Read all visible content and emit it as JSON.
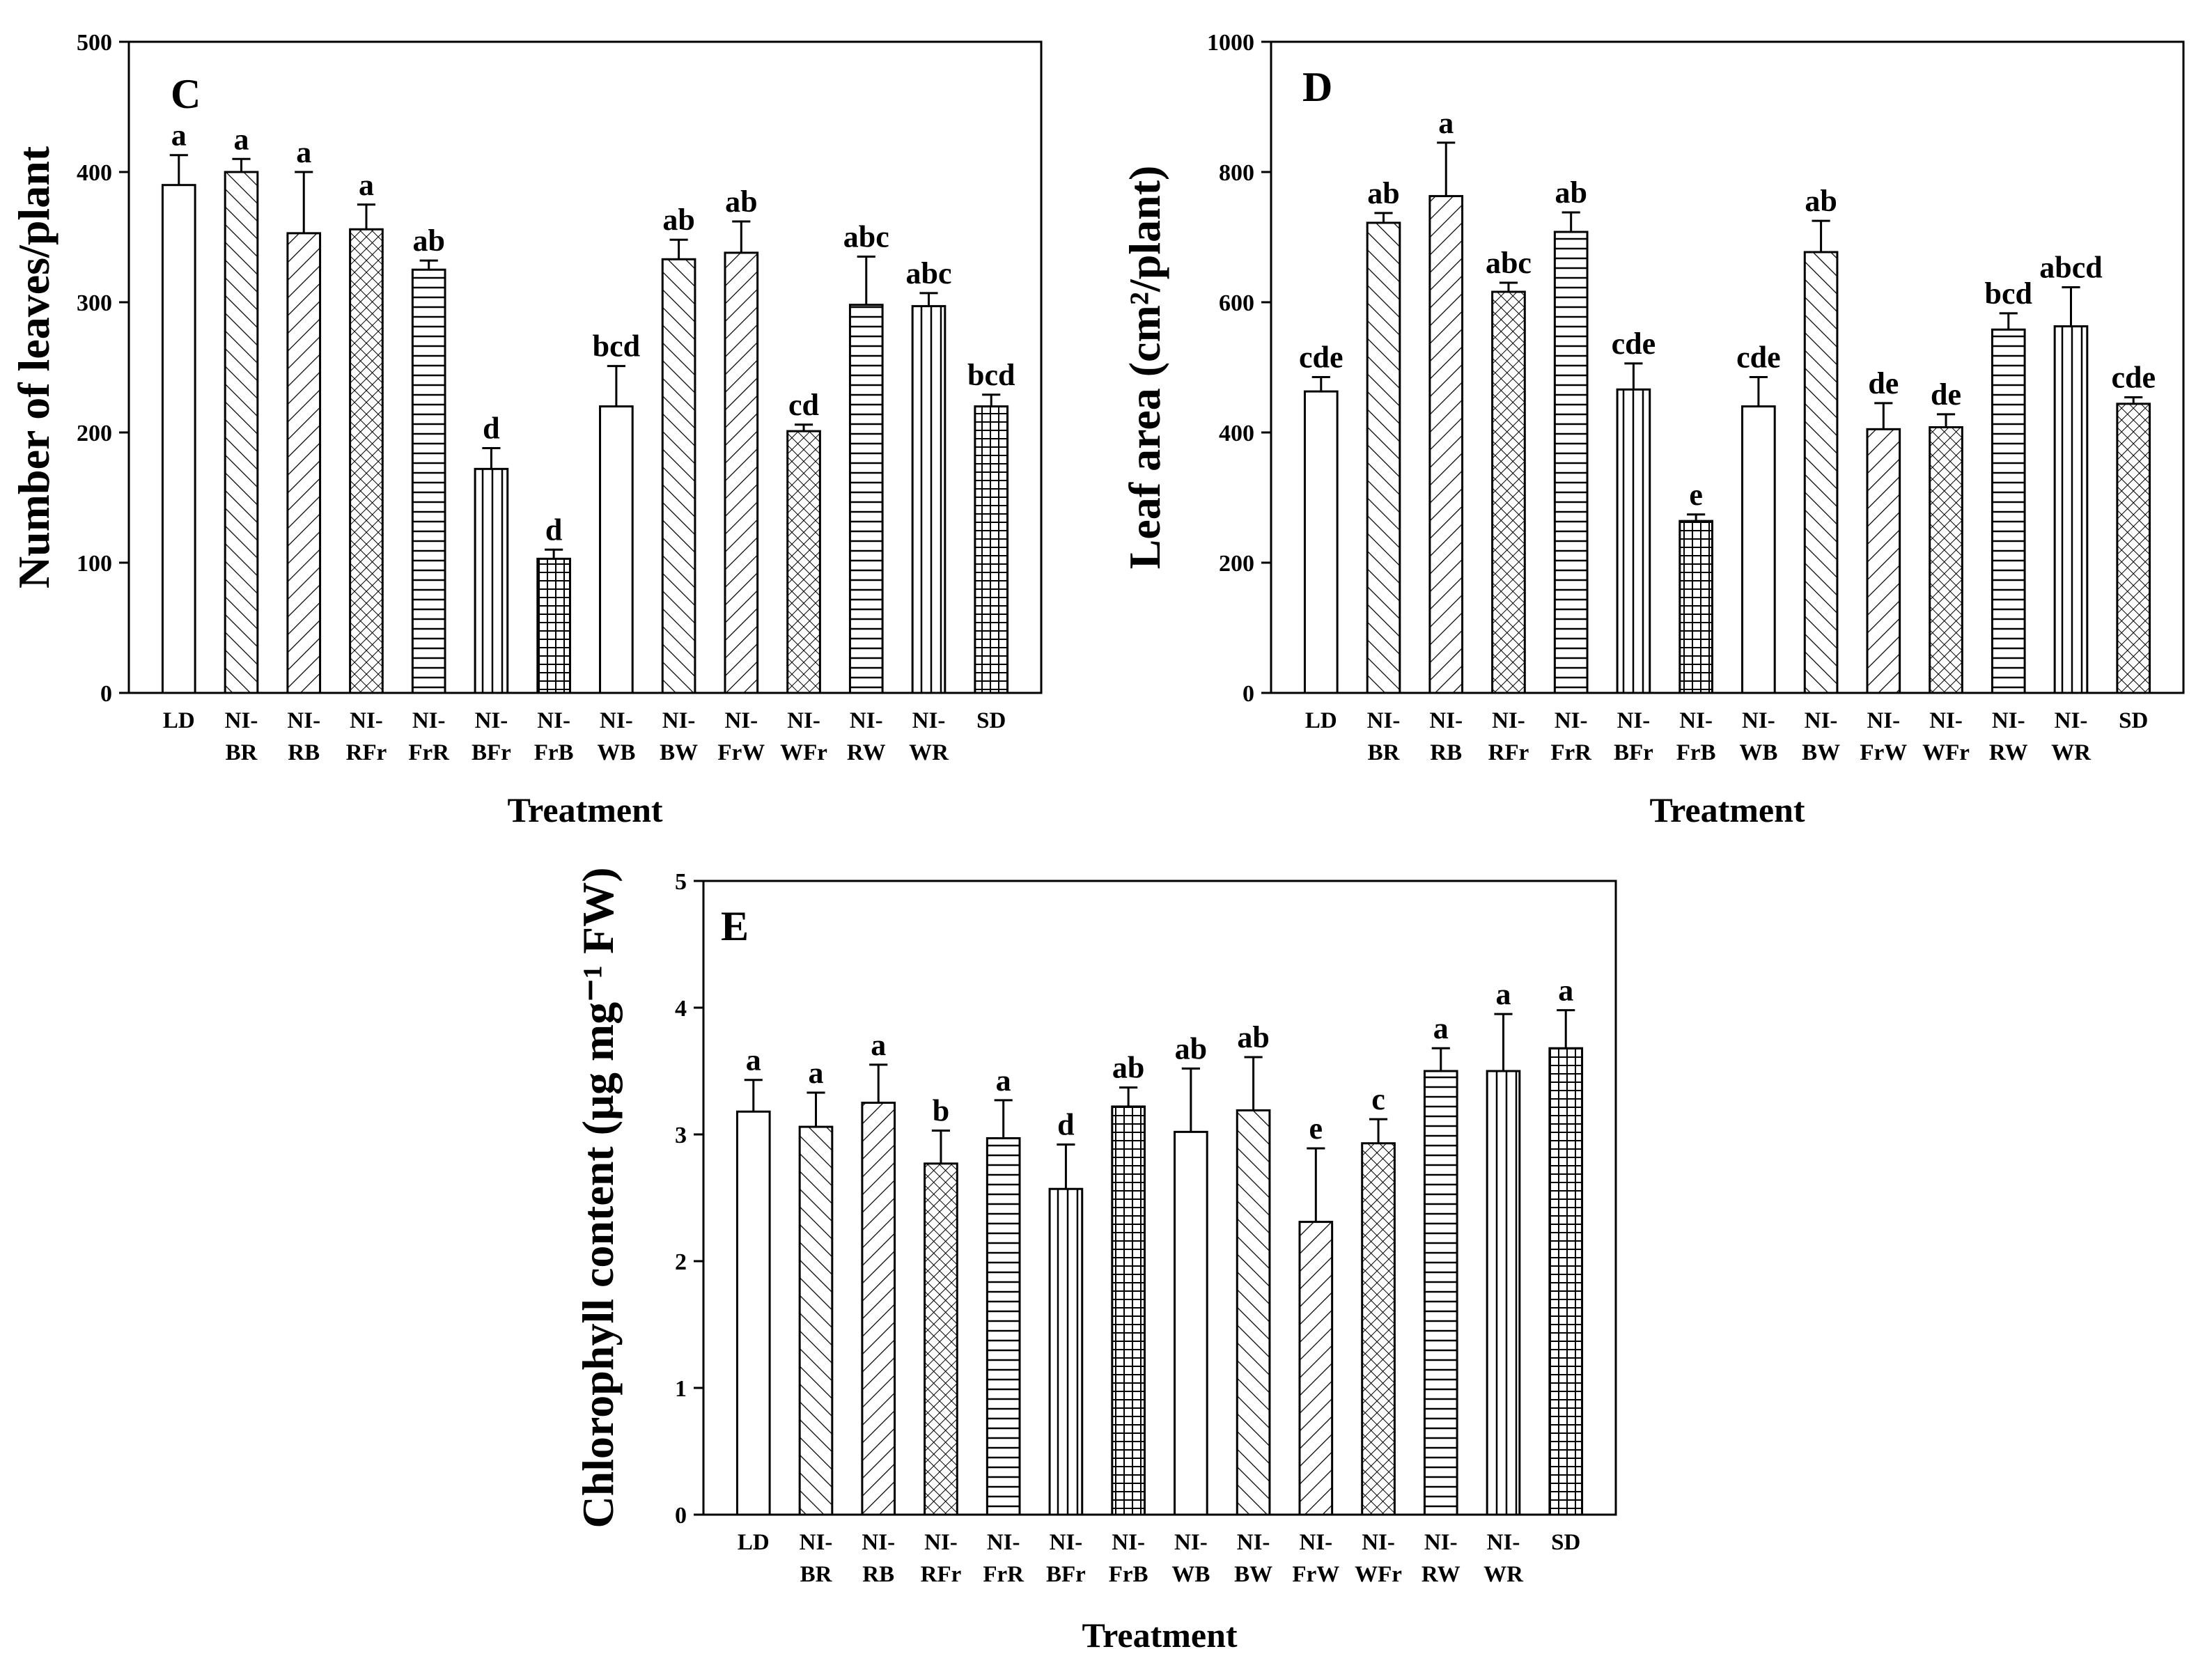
{
  "figure": {
    "xlabel": "Treatment"
  },
  "chart_data": [
    {
      "panel": "C",
      "type": "bar",
      "title": "C",
      "ylabel": "Number of leaves/plant",
      "xlabel": "Treatment",
      "ylim": [
        0,
        500
      ],
      "yticks": [
        0,
        100,
        200,
        300,
        400,
        500
      ],
      "categories": [
        [
          "LD"
        ],
        [
          "NI-",
          "BR"
        ],
        [
          "NI-",
          "RB"
        ],
        [
          "NI-",
          "RFr"
        ],
        [
          "NI-",
          "FrR"
        ],
        [
          "NI-",
          "BFr"
        ],
        [
          "NI-",
          "FrB"
        ],
        [
          "NI-",
          "WB"
        ],
        [
          "NI-",
          "BW"
        ],
        [
          "NI-",
          "FrW"
        ],
        [
          "NI-",
          "WFr"
        ],
        [
          "NI-",
          "RW"
        ],
        [
          "NI-",
          "WR"
        ],
        [
          "SD"
        ]
      ],
      "values": [
        390,
        400,
        353,
        356,
        325,
        172,
        103,
        220,
        333,
        338,
        201,
        298,
        297,
        220
      ],
      "errors": [
        23,
        10,
        47,
        19,
        7,
        16,
        7,
        31,
        15,
        24,
        5,
        37,
        10,
        9
      ],
      "letters": [
        "a",
        "a",
        "a",
        "a",
        "ab",
        "d",
        "d",
        "bcd",
        "ab",
        "ab",
        "cd",
        "abc",
        "abc",
        "bcd"
      ]
    },
    {
      "panel": "D",
      "type": "bar",
      "title": "D",
      "ylabel": "Leaf area (cm²/plant)",
      "xlabel": "Treatment",
      "ylim": [
        0,
        1000
      ],
      "yticks": [
        0,
        200,
        400,
        600,
        800,
        1000
      ],
      "categories": [
        [
          "LD"
        ],
        [
          "NI-",
          "BR"
        ],
        [
          "NI-",
          "RB"
        ],
        [
          "NI-",
          "RFr"
        ],
        [
          "NI-",
          "FrR"
        ],
        [
          "NI-",
          "BFr"
        ],
        [
          "NI-",
          "FrB"
        ],
        [
          "NI-",
          "WB"
        ],
        [
          "NI-",
          "BW"
        ],
        [
          "NI-",
          "FrW"
        ],
        [
          "NI-",
          "WFr"
        ],
        [
          "NI-",
          "RW"
        ],
        [
          "NI-",
          "WR"
        ],
        [
          "SD"
        ]
      ],
      "values": [
        463,
        722,
        763,
        616,
        708,
        466,
        264,
        440,
        677,
        405,
        408,
        558,
        563,
        444
      ],
      "errors": [
        22,
        15,
        82,
        14,
        30,
        40,
        10,
        45,
        48,
        40,
        20,
        25,
        60,
        10
      ],
      "letters": [
        "cde",
        "ab",
        "a",
        "abc",
        "ab",
        "cde",
        "e",
        "cde",
        "ab",
        "de",
        "de",
        "bcd",
        "abcd",
        "cde"
      ]
    },
    {
      "panel": "E",
      "type": "bar",
      "title": "E",
      "ylabel": "Chlorophyll content (µg mg⁻¹ FW)",
      "xlabel": "Treatment",
      "ylim": [
        0,
        5
      ],
      "yticks": [
        0,
        1,
        2,
        3,
        4,
        5
      ],
      "categories": [
        [
          "LD"
        ],
        [
          "NI-",
          "BR"
        ],
        [
          "NI-",
          "RB"
        ],
        [
          "NI-",
          "RFr"
        ],
        [
          "NI-",
          "FrR"
        ],
        [
          "NI-",
          "BFr"
        ],
        [
          "NI-",
          "FrB"
        ],
        [
          "NI-",
          "WB"
        ],
        [
          "NI-",
          "BW"
        ],
        [
          "NI-",
          "FrW"
        ],
        [
          "NI-",
          "WFr"
        ],
        [
          "NI-",
          "RW"
        ],
        [
          "NI-",
          "WR"
        ],
        [
          "SD"
        ]
      ],
      "values": [
        3.18,
        3.06,
        3.25,
        2.77,
        2.97,
        2.57,
        3.22,
        3.02,
        3.19,
        2.31,
        2.93,
        3.5,
        3.5,
        3.68
      ],
      "errors": [
        0.25,
        0.27,
        0.3,
        0.26,
        0.3,
        0.35,
        0.15,
        0.5,
        0.42,
        0.58,
        0.19,
        0.18,
        0.45,
        0.3
      ],
      "letters": [
        "a",
        "a",
        "a",
        "b",
        "a",
        "d",
        "ab",
        "ab",
        "ab",
        "e",
        "c",
        "a",
        "a",
        "a"
      ]
    }
  ]
}
